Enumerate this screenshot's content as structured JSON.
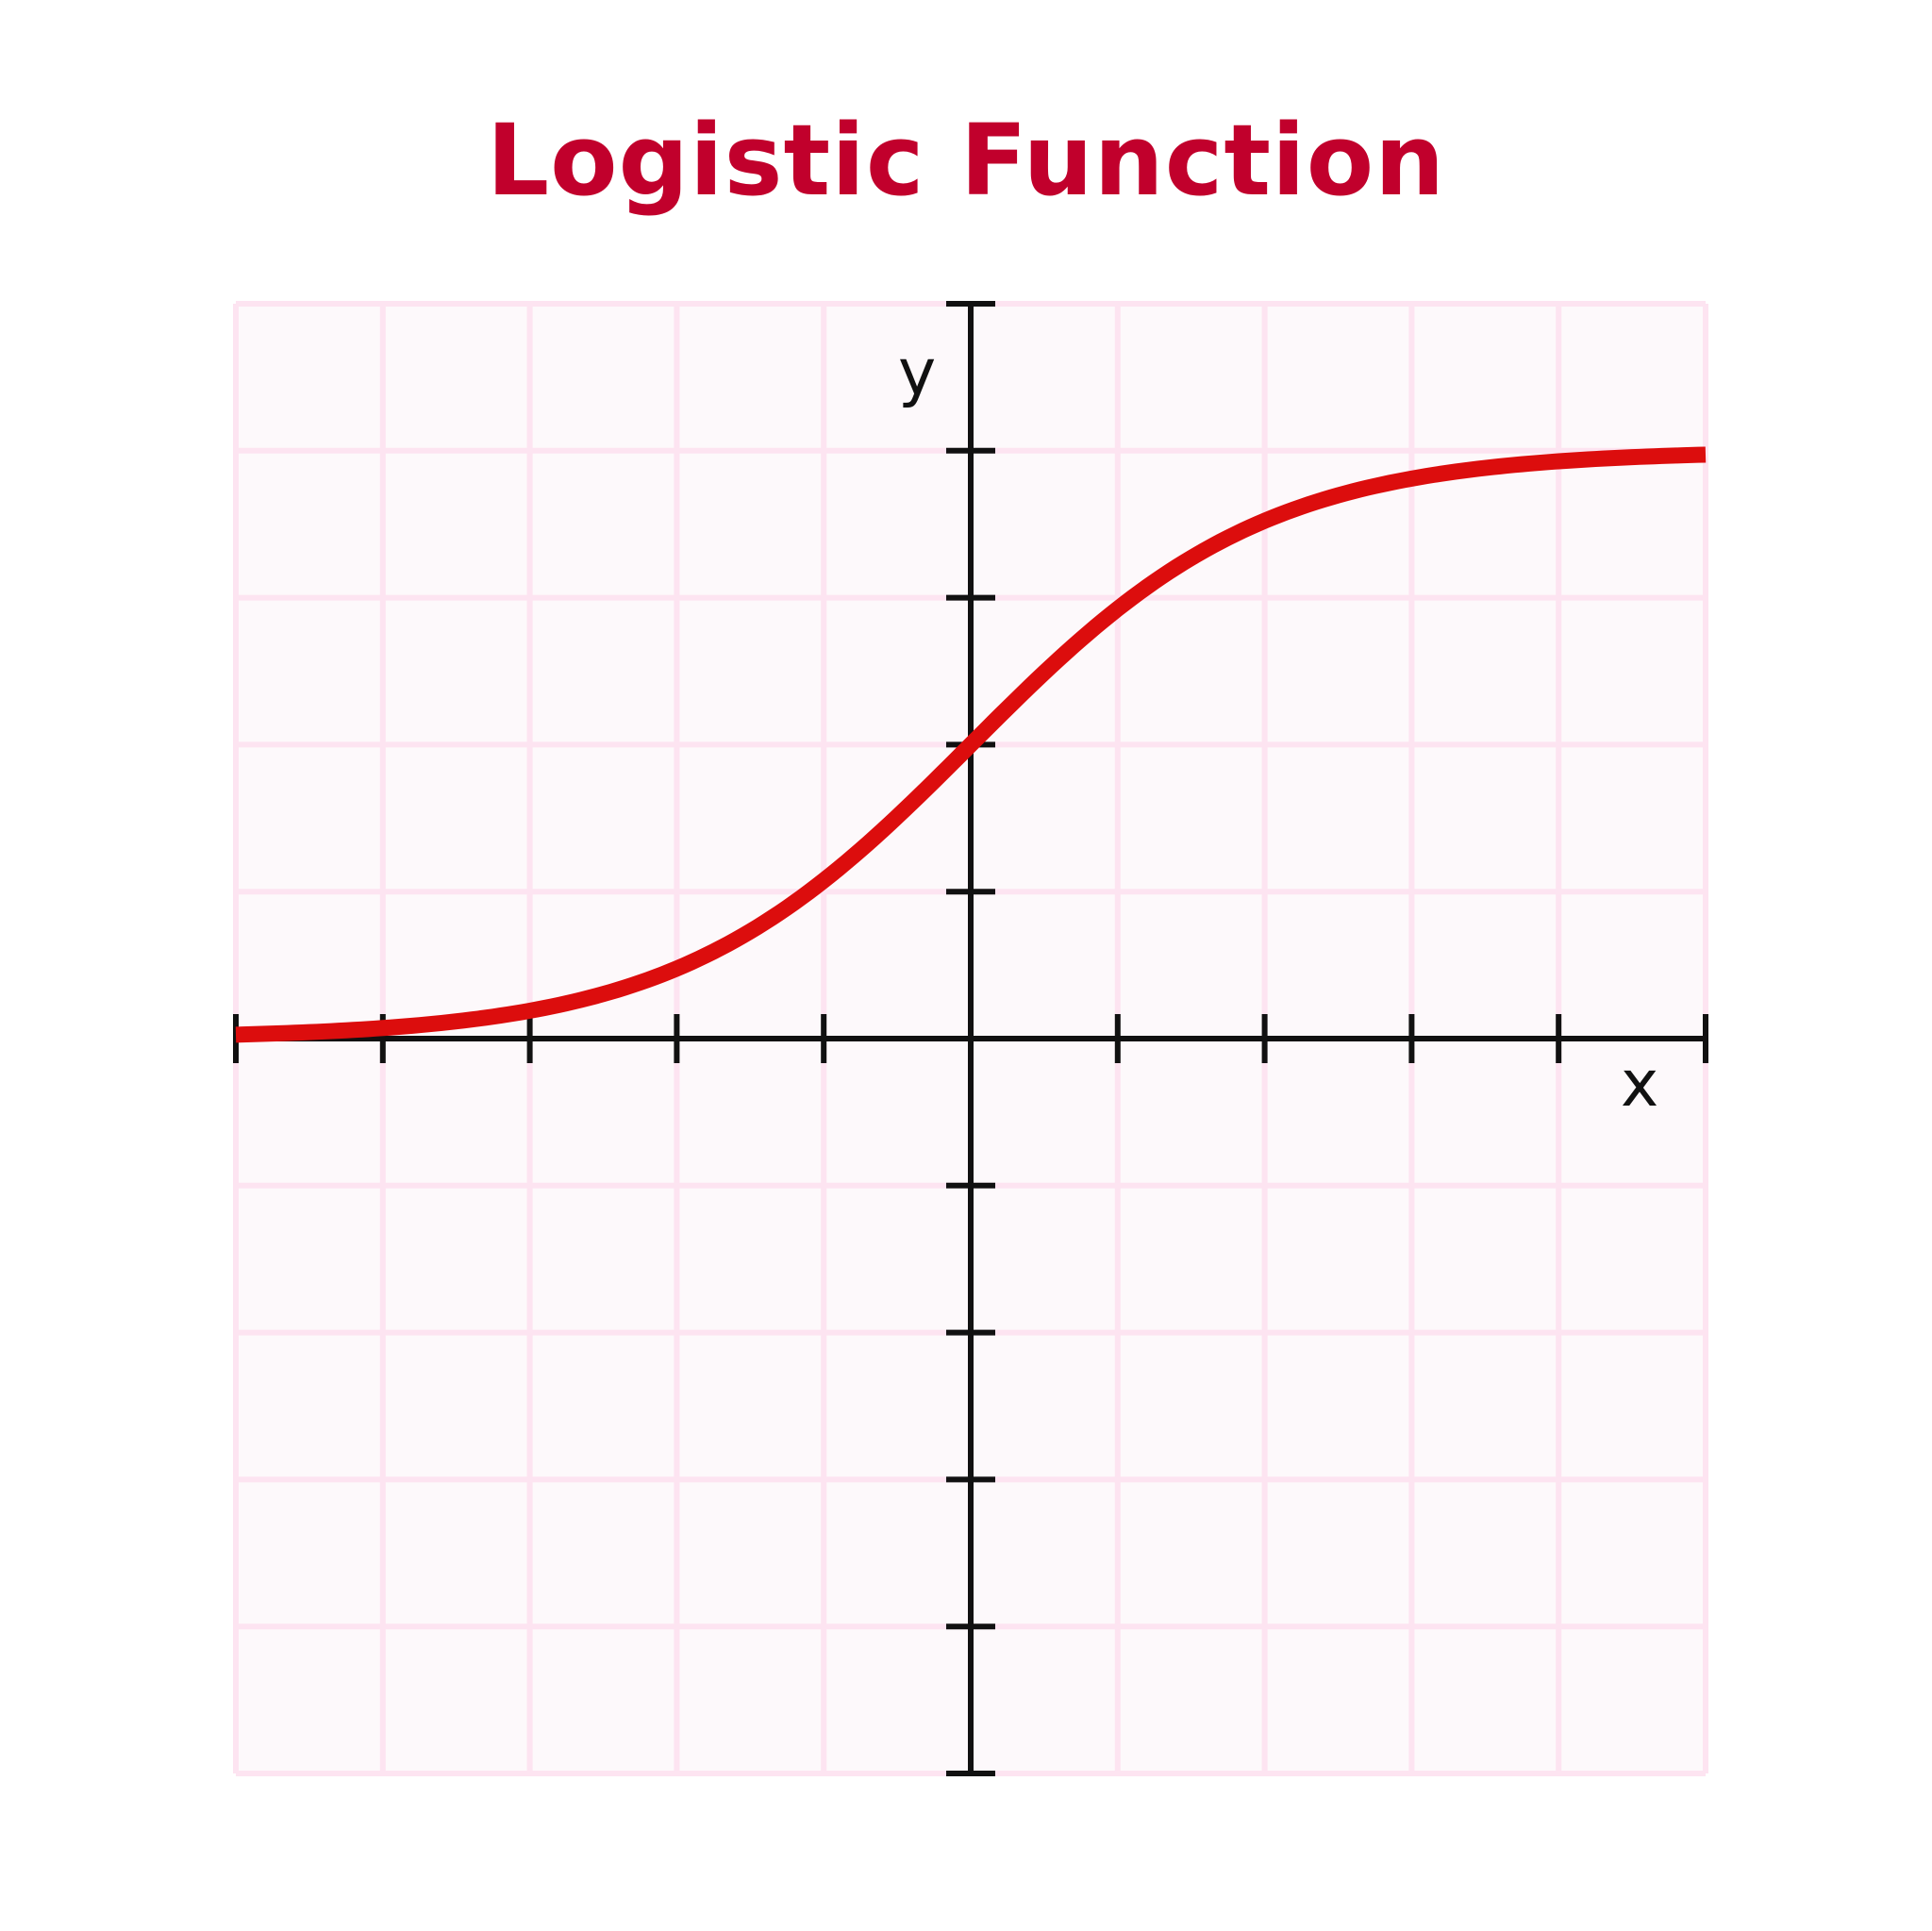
{
  "chart_data": {
    "type": "line",
    "title": "Logistic Function",
    "xlabel": "x",
    "ylabel": "y",
    "xlim": [
      -5,
      5
    ],
    "ylim": [
      -5,
      5
    ],
    "grid": true,
    "x_ticks": [
      -5,
      -4,
      -3,
      -2,
      -1,
      0,
      1,
      2,
      3,
      4,
      5
    ],
    "y_ticks": [
      -5,
      -4,
      -3,
      -2,
      -1,
      0,
      1,
      2,
      3,
      4,
      5
    ],
    "series": [
      {
        "function": "y = 4 / (1 + e^(-x))",
        "x": [
          -5,
          -4,
          -3,
          -2,
          -1,
          0,
          1,
          2,
          3,
          4,
          5
        ],
        "y": [
          0.03,
          0.07,
          0.19,
          0.48,
          1.08,
          2.0,
          2.92,
          3.52,
          3.81,
          3.93,
          4.0
        ]
      }
    ]
  },
  "colors": {
    "title": "#c1002c",
    "curve": "#dc0d0d",
    "grid": "#fde4f1",
    "plot_background": "#fdf9fb",
    "axes": "#111111"
  }
}
